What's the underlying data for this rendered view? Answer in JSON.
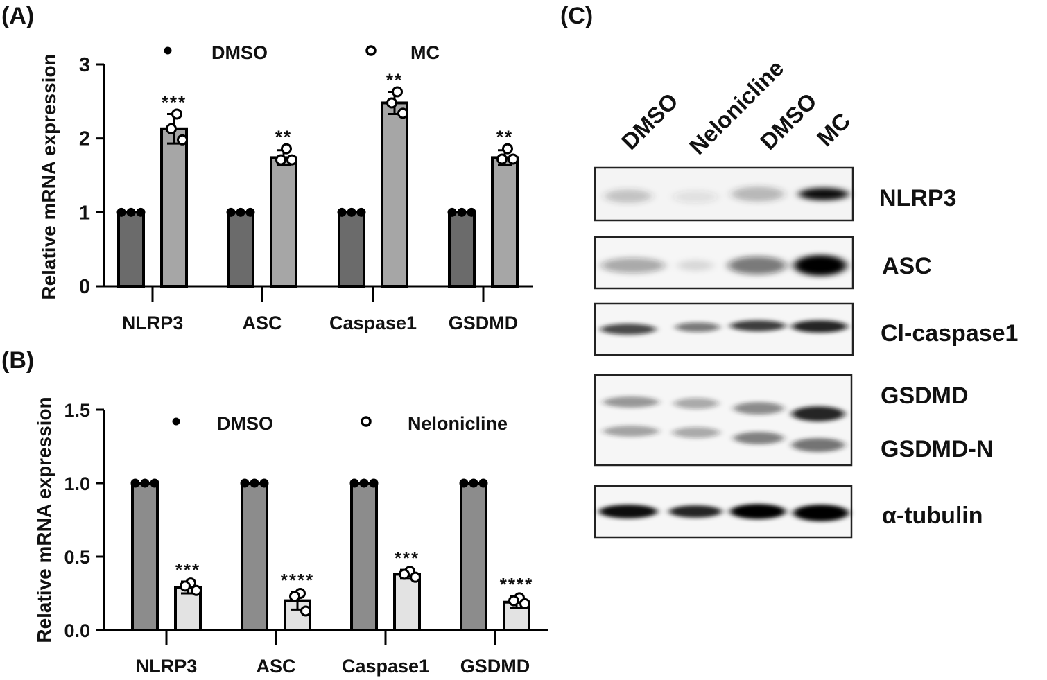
{
  "panels": {
    "a": "(A)",
    "b": "(B)",
    "c": "(C)"
  },
  "chart_data": [
    {
      "type": "bar",
      "panel": "(A)",
      "ylabel": "Relative mRNA expression",
      "ylim": [
        0,
        3
      ],
      "yticks": [
        "0",
        "1",
        "2",
        "3"
      ],
      "categories": [
        "NLRP3",
        "ASC",
        "Caspase1",
        "GSDMD"
      ],
      "legend": [
        "DMSO",
        "MC"
      ],
      "series": [
        {
          "name": "DMSO",
          "values": [
            1.0,
            1.0,
            1.0,
            1.0
          ],
          "sd": [
            0,
            0,
            0,
            0
          ],
          "points": [
            [
              1,
              1,
              1
            ],
            [
              1,
              1,
              1
            ],
            [
              1,
              1,
              1
            ],
            [
              1,
              1,
              1
            ]
          ],
          "color": "#6b6b6b",
          "marker": "filled"
        },
        {
          "name": "MC",
          "values": [
            2.13,
            1.74,
            2.48,
            1.74
          ],
          "sd": [
            0.2,
            0.1,
            0.15,
            0.1
          ],
          "points": [
            [
              2.33,
              2.13,
              1.98
            ],
            [
              1.86,
              1.71,
              1.71
            ],
            [
              2.63,
              2.48,
              2.34
            ],
            [
              1.86,
              1.72,
              1.72
            ]
          ],
          "color": "#a6a6a6",
          "marker": "open"
        }
      ],
      "significance": [
        "***",
        "**",
        "**",
        "**"
      ]
    },
    {
      "type": "bar",
      "panel": "(B)",
      "ylabel": "Relative mRNA expression",
      "ylim": [
        0,
        1.5
      ],
      "yticks": [
        "0.0",
        "0.5",
        "1.0",
        "1.5"
      ],
      "categories": [
        "NLRP3",
        "ASC",
        "Caspase1",
        "GSDMD"
      ],
      "legend": [
        "DMSO",
        "Nelonicline"
      ],
      "series": [
        {
          "name": "DMSO",
          "values": [
            1.0,
            1.0,
            1.0,
            1.0
          ],
          "sd": [
            0,
            0,
            0,
            0
          ],
          "points": [
            [
              1,
              1,
              1
            ],
            [
              1,
              1,
              1
            ],
            [
              1,
              1,
              1
            ],
            [
              1,
              1,
              1
            ]
          ],
          "color": "#8c8c8c",
          "marker": "filled"
        },
        {
          "name": "Nelonicline",
          "values": [
            0.29,
            0.2,
            0.38,
            0.19
          ],
          "sd": [
            0.04,
            0.06,
            0.03,
            0.04
          ],
          "points": [
            [
              0.32,
              0.3,
              0.27
            ],
            [
              0.25,
              0.23,
              0.13
            ],
            [
              0.4,
              0.38,
              0.36
            ],
            [
              0.22,
              0.2,
              0.18
            ]
          ],
          "color": "#e3e3e3",
          "marker": "open"
        }
      ],
      "significance": [
        "***",
        "****",
        "***",
        "****"
      ]
    }
  ],
  "blot": {
    "lanes": [
      "DMSO",
      "Nelonicline",
      "DMSO",
      "MC"
    ],
    "labels": {
      "nlrp3": "NLRP3",
      "asc": "ASC",
      "clcasp": "Cl-caspase1",
      "gsdmd": "GSDMD",
      "gsdmdn": "GSDMD-N",
      "tubulin": "α-tubulin"
    },
    "band_intensity": {
      "NLRP3": [
        0.25,
        0.1,
        0.3,
        0.95
      ],
      "ASC": [
        0.35,
        0.12,
        0.55,
        1.0
      ],
      "Cl-caspase1": [
        0.75,
        0.55,
        0.8,
        0.9
      ],
      "GSDMD": [
        0.45,
        0.35,
        0.5,
        0.9
      ],
      "GSDMD-N": [
        0.4,
        0.35,
        0.55,
        0.6
      ],
      "α-tubulin": [
        0.95,
        0.85,
        1.0,
        1.0
      ]
    }
  }
}
